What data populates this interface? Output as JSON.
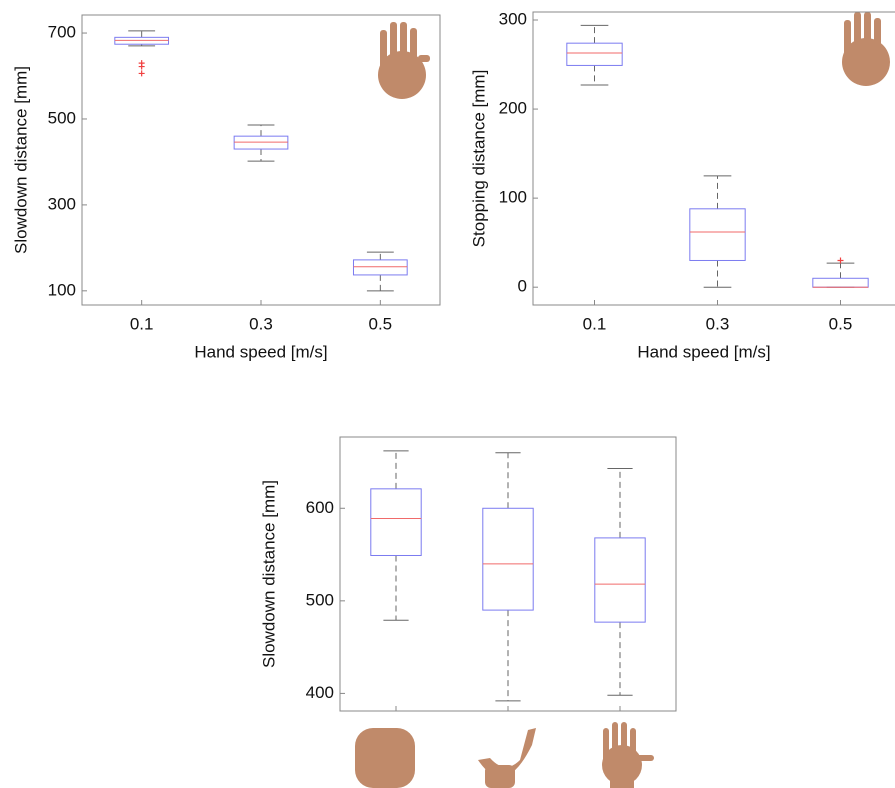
{
  "chart_data": [
    {
      "type": "box",
      "xlabel": "Hand speed [m/s]",
      "ylabel": "Slowdown distance [mm]",
      "categories": [
        "0.1",
        "0.3",
        "0.5"
      ],
      "boxes": [
        {
          "min": 670,
          "q1": 674,
          "median": 683,
          "q3": 690,
          "max": 705,
          "outliers": [
            630,
            622,
            606
          ]
        },
        {
          "min": 402,
          "q1": 430,
          "median": 446,
          "q3": 460,
          "max": 486
        },
        {
          "min": 100,
          "q1": 137,
          "median": 156,
          "q3": 172,
          "max": 190
        }
      ],
      "ylim": [
        67,
        742
      ],
      "yticks": [
        100,
        300,
        500,
        700
      ],
      "box_color": "#7b7bf0",
      "median_color": "#f06a6a",
      "whisker_color": "#666666",
      "outlier_color": "#f04040"
    },
    {
      "type": "box",
      "xlabel": "Hand speed [m/s]",
      "ylabel": "Stopping distance [mm]",
      "categories": [
        "0.1",
        "0.3",
        "0.5"
      ],
      "boxes": [
        {
          "min": 227,
          "q1": 249,
          "median": 263,
          "q3": 274,
          "max": 294
        },
        {
          "min": 0,
          "q1": 30,
          "median": 62,
          "q3": 88,
          "max": 125
        },
        {
          "min": 0,
          "q1": 0,
          "median": 0,
          "q3": 10,
          "max": 27,
          "outliers": [
            30
          ]
        }
      ],
      "ylim": [
        -20,
        309
      ],
      "yticks": [
        0,
        100,
        200,
        300
      ],
      "box_color": "#7b7bf0",
      "median_color": "#f06a6a",
      "whisker_color": "#666666",
      "outlier_color": "#f04040"
    },
    {
      "type": "box",
      "ylabel": "Slowdown distance [mm]",
      "categories": [
        null,
        null,
        null
      ],
      "boxes": [
        {
          "min": 479,
          "q1": 549,
          "median": 589,
          "q3": 621,
          "max": 662
        },
        {
          "min": 392,
          "q1": 490,
          "median": 540,
          "q3": 600,
          "max": 660
        },
        {
          "min": 398,
          "q1": 477,
          "median": 518,
          "q3": 568,
          "max": 643
        }
      ],
      "ylim": [
        381,
        677
      ],
      "yticks": [
        400,
        500,
        600
      ],
      "box_color": "#7b7bf0",
      "median_color": "#f06a6a",
      "whisker_color": "#666666",
      "outlier_color": "#f04040"
    }
  ]
}
